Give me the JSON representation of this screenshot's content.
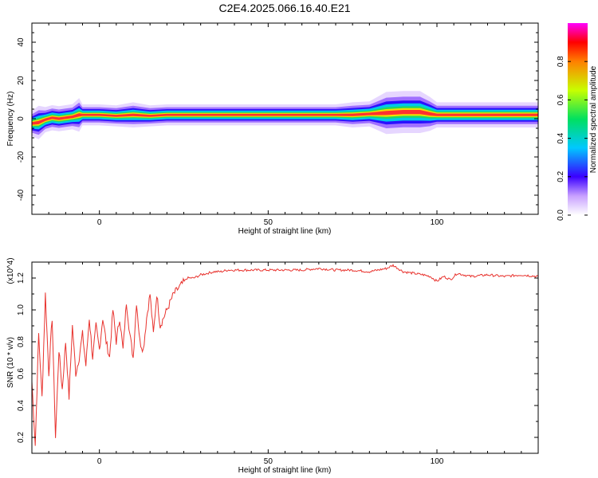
{
  "title": "C2E4.2025.066.16.40.E21",
  "chart_data": [
    {
      "type": "heatmap",
      "xlabel": "Height of straight line (km)",
      "ylabel": "Frequency (Hz)",
      "xlim": [
        -20,
        130
      ],
      "ylim": [
        -50,
        50
      ],
      "xticks": [
        0,
        50,
        100
      ],
      "yticks": [
        -40,
        -20,
        0,
        20,
        40
      ],
      "x": [
        -20,
        -18,
        -16,
        -14,
        -12,
        -10,
        -8,
        -6,
        -5,
        0,
        5,
        10,
        15,
        20,
        25,
        30,
        40,
        50,
        60,
        70,
        75,
        80,
        85,
        90,
        95,
        98,
        100,
        105,
        110,
        115,
        120,
        125,
        130
      ],
      "peak_frequency": [
        -2.5,
        -2,
        -0.5,
        0.5,
        0,
        0.5,
        1,
        2,
        2,
        2,
        1.5,
        2,
        1.5,
        2,
        2,
        2,
        2,
        2,
        2,
        2,
        2,
        2.5,
        3,
        3.5,
        3.5,
        2.5,
        2,
        2,
        2,
        2,
        2,
        2,
        2
      ],
      "bandwidth": [
        3,
        4,
        3,
        3,
        3,
        3,
        3,
        4,
        2.5,
        2.5,
        2.5,
        3,
        2.5,
        2.5,
        2.5,
        2.5,
        2.5,
        2.5,
        2.5,
        2.5,
        3,
        3,
        5,
        5,
        5,
        4,
        3,
        3,
        3,
        3,
        3,
        3,
        3
      ],
      "colorbar": {
        "label": "Normalized spectral amplitude",
        "range": [
          0,
          1
        ],
        "ticks": [
          0.0,
          0.2,
          0.4,
          0.6,
          0.8
        ]
      },
      "grid": false
    },
    {
      "type": "line",
      "xlabel": "Height of straight line (km)",
      "ylabel": "SNR (10 * v/v)",
      "scale_note": "(x10^4)",
      "xlim": [
        -20,
        130
      ],
      "ylim": [
        0.1,
        1.3
      ],
      "xticks": [
        0,
        50,
        100
      ],
      "yticks": [
        0.2,
        0.4,
        0.6,
        0.8,
        1.0,
        1.2
      ],
      "series": [
        {
          "color": "#e8332e",
          "x": [
            -20,
            -19,
            -18,
            -17,
            -16,
            -15,
            -14,
            -13,
            -12,
            -11,
            -10,
            -9,
            -8,
            -7,
            -6,
            -5,
            -4,
            -3,
            -2,
            -1,
            0,
            1,
            2,
            3,
            4,
            5,
            6,
            7,
            8,
            9,
            10,
            11,
            12,
            13,
            14,
            15,
            16,
            17,
            18,
            19,
            20,
            22,
            24,
            26,
            28,
            30,
            32,
            34,
            36,
            38,
            40,
            45,
            50,
            55,
            60,
            65,
            70,
            75,
            80,
            85,
            87,
            90,
            93,
            96,
            98,
            100,
            102,
            104,
            106,
            108,
            110,
            115,
            120,
            125,
            130
          ],
          "y": [
            0.55,
            0.15,
            0.85,
            0.45,
            1.1,
            0.6,
            0.95,
            0.2,
            0.75,
            0.5,
            0.8,
            0.45,
            0.9,
            0.6,
            0.7,
            0.85,
            0.65,
            0.95,
            0.7,
            0.9,
            0.75,
            0.95,
            0.8,
            0.7,
            1.0,
            0.8,
            0.95,
            0.75,
            1.05,
            0.85,
            0.7,
            1.05,
            0.8,
            0.75,
            0.95,
            1.1,
            0.85,
            1.1,
            0.9,
            0.95,
            1.0,
            1.1,
            1.15,
            1.2,
            1.2,
            1.22,
            1.23,
            1.24,
            1.24,
            1.25,
            1.25,
            1.25,
            1.25,
            1.25,
            1.25,
            1.26,
            1.25,
            1.25,
            1.24,
            1.26,
            1.28,
            1.24,
            1.23,
            1.22,
            1.21,
            1.18,
            1.21,
            1.19,
            1.23,
            1.22,
            1.21,
            1.22,
            1.21,
            1.22,
            1.21
          ]
        }
      ],
      "grid": false
    }
  ]
}
